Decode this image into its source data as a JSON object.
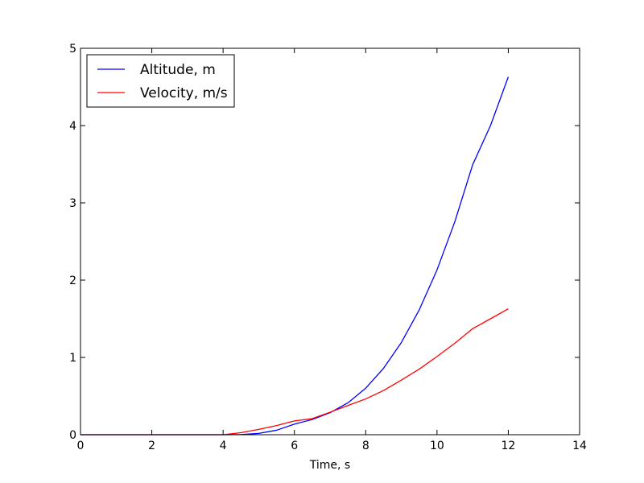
{
  "chart_data": {
    "type": "line",
    "xlabel": "Time, s",
    "ylabel": "",
    "xlim": [
      0,
      14
    ],
    "ylim": [
      0,
      5
    ],
    "xticks": [
      0,
      2,
      4,
      6,
      8,
      10,
      12,
      14
    ],
    "yticks": [
      0,
      1,
      2,
      3,
      4,
      5
    ],
    "grid": false,
    "legend_position": "top-left",
    "x": [
      0,
      1,
      2,
      3,
      4,
      4.5,
      5,
      5.5,
      6,
      6.5,
      7,
      7.5,
      8,
      8.5,
      9,
      9.5,
      10,
      10.5,
      11,
      11.5,
      12
    ],
    "series": [
      {
        "name": "Altitude, m",
        "color": "#0000ff",
        "values": [
          0,
          0,
          0,
          0,
          0,
          0.002,
          0.017,
          0.058,
          0.137,
          0.197,
          0.285,
          0.412,
          0.602,
          0.859,
          1.193,
          1.614,
          2.132,
          2.756,
          3.493,
          4.0,
          4.63
        ]
      },
      {
        "name": "Velocity, m/s",
        "color": "#ff0000",
        "values": [
          0,
          0,
          0,
          0,
          0,
          0.026,
          0.069,
          0.118,
          0.178,
          0.208,
          0.291,
          0.378,
          0.463,
          0.572,
          0.707,
          0.848,
          1.012,
          1.184,
          1.372,
          1.5,
          1.63
        ]
      }
    ]
  }
}
